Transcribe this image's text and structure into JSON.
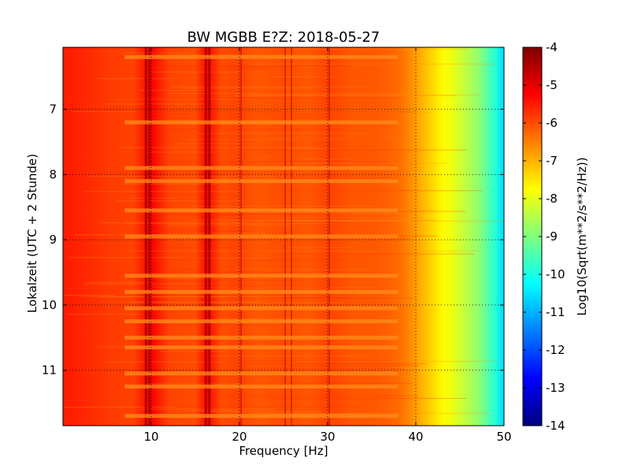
{
  "chart_data": {
    "type": "heatmap",
    "title": "BW MGBB E?Z: 2018-05-27",
    "xlabel": "Frequency [Hz]",
    "ylabel": "Lokalzeit (UTC + 2 Stunde)",
    "xlim": [
      0,
      50
    ],
    "ylim": [
      11.85,
      6.05
    ],
    "y_inverted": true,
    "grid": true,
    "x_ticks": [
      10,
      20,
      30,
      40,
      50
    ],
    "y_ticks": [
      7,
      8,
      9,
      10,
      11
    ],
    "colorbar": {
      "label": "Log10(Sqrt(m**2/s**2/Hz))",
      "range": [
        -14,
        -4
      ],
      "ticks": [
        -4,
        -5,
        -6,
        -7,
        -8,
        -9,
        -10,
        -11,
        -12,
        -13,
        -14
      ],
      "colormap": "jet"
    },
    "spectral_profile": {
      "frequency_hz": [
        0,
        2,
        5,
        8,
        10,
        12,
        15,
        16.3,
        18,
        20,
        22,
        25,
        28,
        30,
        33,
        35,
        37,
        38,
        39,
        40,
        41,
        42,
        43,
        44,
        45,
        46,
        47,
        48,
        49,
        50
      ],
      "level": [
        -5.5,
        -5.6,
        -5.8,
        -5.9,
        -5.2,
        -5.9,
        -6.0,
        -5.3,
        -6.0,
        -5.9,
        -6.1,
        -6.0,
        -6.1,
        -5.9,
        -6.1,
        -6.1,
        -6.2,
        -6.3,
        -6.5,
        -6.8,
        -7.1,
        -7.4,
        -7.7,
        -7.9,
        -8.2,
        -8.5,
        -8.8,
        -9.3,
        -9.9,
        -10.6
      ]
    },
    "dark_lines_hz": [
      9.4,
      9.8,
      16.2,
      16.6,
      20.2,
      25.2,
      25.9,
      30.2
    ],
    "light_bands_hour": [
      6.2,
      7.2,
      7.9,
      8.1,
      8.55,
      8.95,
      9.55,
      9.8,
      10.05,
      10.25,
      10.5,
      10.65,
      11.05,
      11.25,
      11.7
    ]
  }
}
